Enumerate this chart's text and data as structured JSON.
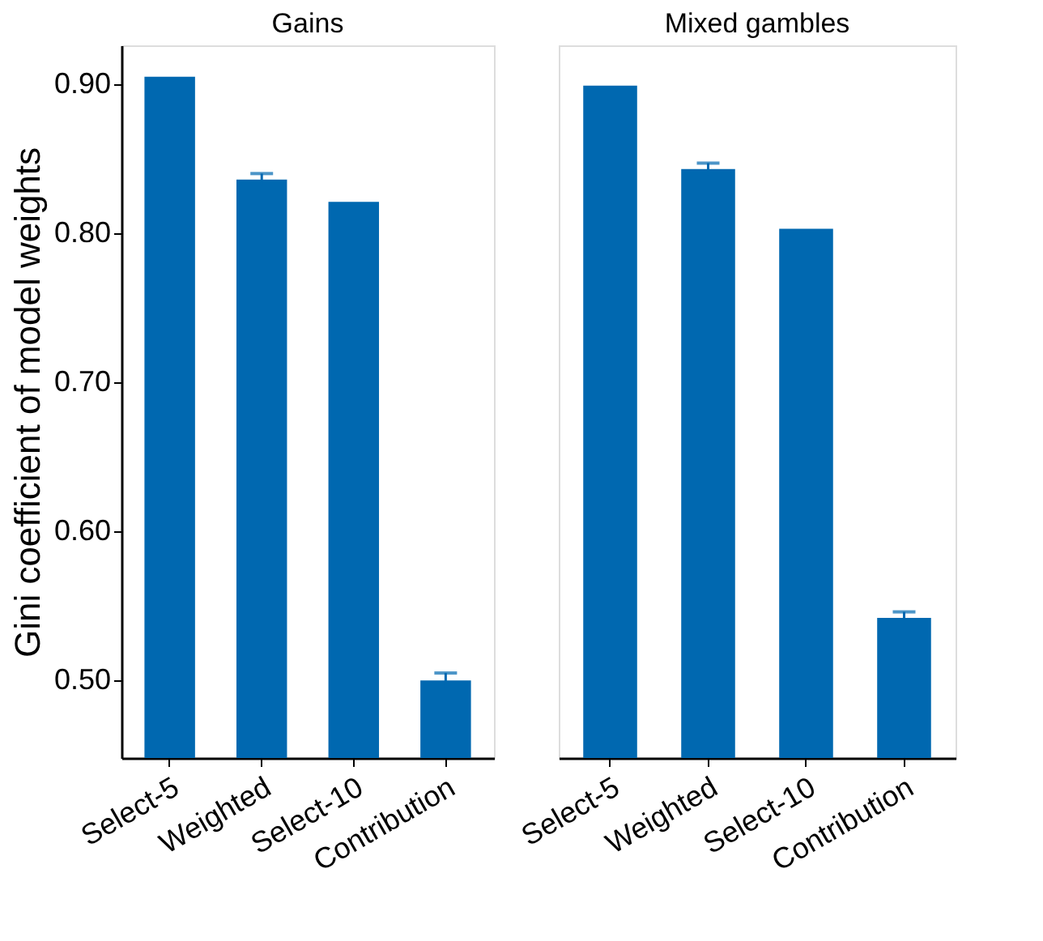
{
  "chart_data": [
    {
      "type": "bar",
      "title": "Gains",
      "ylabel": "Gini coefficient of model weights",
      "categories": [
        "Select-5",
        "Weighted",
        "Select-10",
        "Contribution"
      ],
      "series": [
        {
          "color": "#0068b0",
          "values": [
            0.905,
            0.836,
            0.821,
            0.5
          ],
          "errors": [
            null,
            0.004,
            null,
            0.005
          ]
        }
      ],
      "ylim": [
        0.448,
        0.926
      ],
      "yticks": [
        {
          "value": 0.5,
          "label": "0.50"
        },
        {
          "value": 0.6,
          "label": "0.60"
        },
        {
          "value": 0.7,
          "label": "0.70"
        },
        {
          "value": 0.8,
          "label": "0.80"
        },
        {
          "value": 0.9,
          "label": "0.90"
        }
      ],
      "grid": false
    },
    {
      "type": "bar",
      "title": "Mixed gambles",
      "categories": [
        "Select-5",
        "Weighted",
        "Select-10",
        "Contribution"
      ],
      "series": [
        {
          "color": "#0068b0",
          "values": [
            0.899,
            0.843,
            0.803,
            0.542
          ],
          "errors": [
            null,
            0.004,
            null,
            0.004
          ]
        }
      ],
      "ylim": [
        0.448,
        0.926
      ],
      "grid": false,
      "tick_labels": "x"
    }
  ]
}
